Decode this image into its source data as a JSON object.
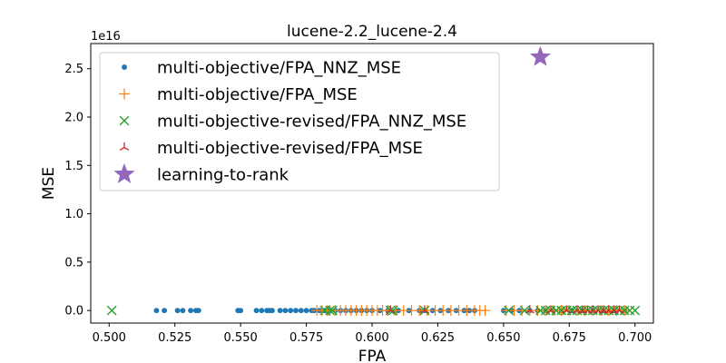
{
  "chart_data": {
    "type": "scatter",
    "title": "lucene-2.2_lucene-2.4",
    "xlabel": "FPA",
    "ylabel": "MSE",
    "y_offset_text": "1e16",
    "xlim": [
      0.493,
      0.707
    ],
    "ylim": [
      -1300000000000000.0,
      2.76e+16
    ],
    "x_ticks": [
      0.5,
      0.525,
      0.55,
      0.575,
      0.6,
      0.625,
      0.65,
      0.675,
      0.7
    ],
    "x_tick_labels": [
      "0.500",
      "0.525",
      "0.550",
      "0.575",
      "0.600",
      "0.625",
      "0.650",
      "0.675",
      "0.700"
    ],
    "y_ticks": [
      0,
      5000000000000000.0,
      1e+16,
      1.5e+16,
      2e+16,
      2.5e+16
    ],
    "y_tick_labels": [
      "0.0",
      "0.5",
      "1.0",
      "1.5",
      "2.0",
      "2.5"
    ],
    "legend_position": "upper-left",
    "grid": false,
    "series": [
      {
        "name": "multi-objective/FPA_NNZ_MSE",
        "marker": "dot",
        "color": "#1f77b4",
        "points": [
          [
            0.518,
            0
          ],
          [
            0.521,
            0
          ],
          [
            0.526,
            0
          ],
          [
            0.528,
            0
          ],
          [
            0.531,
            0
          ],
          [
            0.533,
            0
          ],
          [
            0.534,
            0
          ],
          [
            0.549,
            0
          ],
          [
            0.55,
            0
          ],
          [
            0.556,
            0
          ],
          [
            0.558,
            0
          ],
          [
            0.56,
            0
          ],
          [
            0.561,
            0
          ],
          [
            0.562,
            0
          ],
          [
            0.565,
            0
          ],
          [
            0.567,
            0
          ],
          [
            0.569,
            0
          ],
          [
            0.571,
            0
          ],
          [
            0.573,
            0
          ],
          [
            0.575,
            0
          ],
          [
            0.577,
            0
          ],
          [
            0.578,
            0
          ],
          [
            0.58,
            0
          ],
          [
            0.582,
            0
          ],
          [
            0.584,
            0
          ],
          [
            0.586,
            0
          ],
          [
            0.588,
            0
          ],
          [
            0.59,
            0
          ],
          [
            0.592,
            0
          ],
          [
            0.594,
            0
          ],
          [
            0.596,
            0
          ],
          [
            0.598,
            0
          ],
          [
            0.6,
            0
          ],
          [
            0.603,
            0
          ],
          [
            0.606,
            0
          ],
          [
            0.61,
            0
          ],
          [
            0.614,
            0
          ],
          [
            0.618,
            0
          ],
          [
            0.62,
            0
          ],
          [
            0.623,
            0
          ],
          [
            0.626,
            0
          ],
          [
            0.629,
            0
          ],
          [
            0.632,
            0
          ],
          [
            0.635,
            0
          ],
          [
            0.637,
            0
          ],
          [
            0.639,
            0
          ],
          [
            0.65,
            0
          ],
          [
            0.653,
            0
          ],
          [
            0.656,
            0
          ],
          [
            0.66,
            0
          ],
          [
            0.663,
            0
          ],
          [
            0.666,
            0
          ],
          [
            0.669,
            0
          ],
          [
            0.672,
            0
          ],
          [
            0.676,
            0
          ],
          [
            0.68,
            0
          ],
          [
            0.684,
            0
          ],
          [
            0.688,
            0
          ],
          [
            0.692,
            0
          ],
          [
            0.696,
            0
          ]
        ]
      },
      {
        "name": "multi-objective/FPA_MSE",
        "marker": "plus",
        "color": "#ff7f0e",
        "points": [
          [
            0.579,
            0
          ],
          [
            0.581,
            0
          ],
          [
            0.583,
            0
          ],
          [
            0.584,
            0
          ],
          [
            0.586,
            0
          ],
          [
            0.588,
            0
          ],
          [
            0.59,
            0
          ],
          [
            0.592,
            0
          ],
          [
            0.594,
            0
          ],
          [
            0.596,
            0
          ],
          [
            0.598,
            0
          ],
          [
            0.6,
            0
          ],
          [
            0.602,
            0
          ],
          [
            0.604,
            0
          ],
          [
            0.606,
            0
          ],
          [
            0.609,
            0
          ],
          [
            0.612,
            0
          ],
          [
            0.615,
            0
          ],
          [
            0.618,
            0
          ],
          [
            0.621,
            0
          ],
          [
            0.624,
            0
          ],
          [
            0.627,
            0
          ],
          [
            0.63,
            0
          ],
          [
            0.633,
            0
          ],
          [
            0.636,
            0
          ],
          [
            0.639,
            0
          ],
          [
            0.641,
            0
          ],
          [
            0.643,
            0
          ],
          [
            0.651,
            0
          ],
          [
            0.654,
            0
          ],
          [
            0.657,
            0
          ],
          [
            0.66,
            0
          ],
          [
            0.663,
            0
          ],
          [
            0.666,
            0
          ],
          [
            0.669,
            0
          ],
          [
            0.672,
            0
          ],
          [
            0.675,
            0
          ],
          [
            0.678,
            0
          ],
          [
            0.681,
            0
          ],
          [
            0.684,
            0
          ],
          [
            0.687,
            0
          ],
          [
            0.69,
            0
          ],
          [
            0.693,
            0
          ],
          [
            0.696,
            0
          ]
        ]
      },
      {
        "name": "multi-objective-revised/FPA_NNZ_MSE",
        "marker": "x",
        "color": "#2ca02c",
        "points": [
          [
            0.501,
            0
          ],
          [
            0.582,
            0
          ],
          [
            0.584,
            0
          ],
          [
            0.585,
            0
          ],
          [
            0.607,
            0
          ],
          [
            0.608,
            0
          ],
          [
            0.62,
            0
          ],
          [
            0.652,
            0
          ],
          [
            0.658,
            0
          ],
          [
            0.664,
            0
          ],
          [
            0.666,
            0
          ],
          [
            0.668,
            0
          ],
          [
            0.67,
            0
          ],
          [
            0.672,
            0
          ],
          [
            0.674,
            0
          ],
          [
            0.676,
            0
          ],
          [
            0.678,
            0
          ],
          [
            0.68,
            0
          ],
          [
            0.682,
            0
          ],
          [
            0.684,
            0
          ],
          [
            0.686,
            0
          ],
          [
            0.688,
            0
          ],
          [
            0.69,
            0
          ],
          [
            0.692,
            0
          ],
          [
            0.694,
            0
          ],
          [
            0.696,
            0
          ],
          [
            0.698,
            0
          ],
          [
            0.7,
            0
          ]
        ]
      },
      {
        "name": "multi-objective-revised/FPA_MSE",
        "marker": "tri",
        "color": "#d62728",
        "points": [
          [
            0.607,
            0
          ],
          [
            0.62,
            0
          ],
          [
            0.66,
            0
          ],
          [
            0.668,
            0
          ],
          [
            0.674,
            0
          ],
          [
            0.678,
            0
          ],
          [
            0.68,
            0
          ],
          [
            0.682,
            0
          ],
          [
            0.684,
            0
          ],
          [
            0.686,
            0
          ],
          [
            0.688,
            0
          ],
          [
            0.69,
            0
          ],
          [
            0.692,
            0
          ],
          [
            0.694,
            0
          ]
        ]
      },
      {
        "name": "learning-to-rank",
        "marker": "star",
        "color": "#9467bd",
        "points": [
          [
            0.664,
            2.62e+16
          ]
        ]
      }
    ]
  }
}
